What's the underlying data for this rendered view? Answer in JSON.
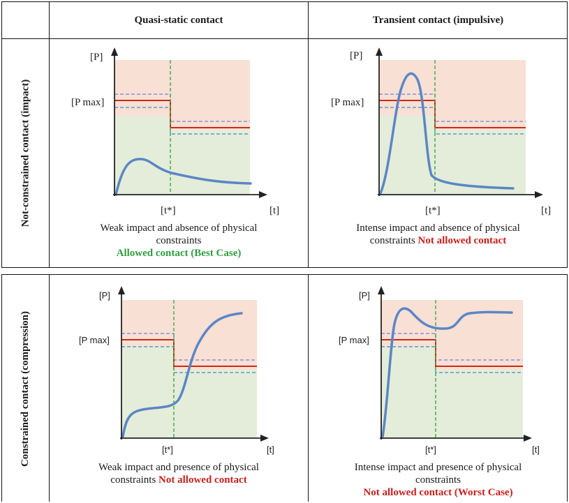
{
  "columns": {
    "quasi_static": "Quasi-static contact",
    "transient": "Transient contact (impulsive)"
  },
  "rows": {
    "not_constrained": "Not-constrained contact (impact)",
    "constrained": "Constrained contact (compression)"
  },
  "axes": {
    "y_label": "[P]",
    "x_label": "[t]",
    "pmax_label": "[P max]",
    "tstar_label": "[t*]"
  },
  "cells": {
    "top_left": {
      "caption_line1": "Weak impact and absence of physical",
      "caption_line2": "constraints",
      "verdict": "Allowed contact (Best Case)"
    },
    "top_right": {
      "caption_line1": "Intense impact and absence of physical",
      "caption_line2": "constraints ",
      "verdict": "Not allowed contact"
    },
    "bottom_left": {
      "caption_line1": "Weak impact and presence of physical",
      "caption_line2": "constraints ",
      "verdict": "Not allowed contact"
    },
    "bottom_right": {
      "caption_line1": "Intense impact and presence of physical",
      "caption_line2": "constraints",
      "verdict": "Not allowed contact (Worst Case)"
    }
  },
  "colors": {
    "allowed_zone": "#e4edd9",
    "forbidden_zone": "#f8e0d4",
    "limit_line": "#cc2a1a",
    "tolerance_dashed": "#8a8fd8",
    "tolerance_dashed_lower": "#5a9bc8",
    "tstar_dashed": "#4caa4c",
    "curve": "#5b86c6",
    "verdict_allowed": "#2e9e3e",
    "verdict_not_allowed": "#c8201c"
  }
}
